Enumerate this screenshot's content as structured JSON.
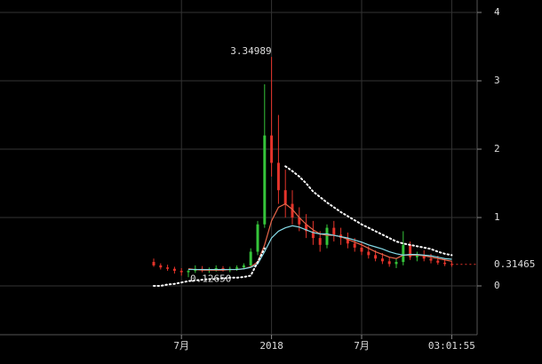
{
  "chart_data": {
    "type": "candlestick",
    "categories": [
      null,
      null,
      null,
      null,
      "7月",
      null,
      null,
      null,
      null,
      null,
      null,
      null,
      null,
      null,
      null,
      null,
      null,
      "2018",
      null,
      null,
      null,
      null,
      null,
      null,
      null,
      null,
      null,
      null,
      null,
      null,
      "7月",
      null,
      null,
      null,
      null,
      null,
      null,
      null,
      null,
      null,
      null,
      null,
      null,
      "03:01:55"
    ],
    "candles": [
      [
        0.35,
        0.4,
        0.28,
        0.3
      ],
      [
        0.3,
        0.33,
        0.24,
        0.27
      ],
      [
        0.27,
        0.31,
        0.22,
        0.25
      ],
      [
        0.25,
        0.28,
        0.18,
        0.22
      ],
      [
        0.22,
        0.26,
        0.15,
        0.2
      ],
      [
        0.2,
        0.24,
        0.1265,
        0.22
      ],
      [
        0.22,
        0.3,
        0.19,
        0.25
      ],
      [
        0.25,
        0.29,
        0.2,
        0.23
      ],
      [
        0.23,
        0.27,
        0.19,
        0.24
      ],
      [
        0.24,
        0.3,
        0.21,
        0.26
      ],
      [
        0.26,
        0.29,
        0.21,
        0.23
      ],
      [
        0.23,
        0.28,
        0.2,
        0.25
      ],
      [
        0.25,
        0.3,
        0.22,
        0.27
      ],
      [
        0.27,
        0.33,
        0.24,
        0.3
      ],
      [
        0.3,
        0.55,
        0.28,
        0.5
      ],
      [
        0.5,
        0.95,
        0.45,
        0.9
      ],
      [
        0.9,
        2.95,
        0.85,
        2.2
      ],
      [
        2.2,
        3.34989,
        1.6,
        1.8
      ],
      [
        1.8,
        2.5,
        1.2,
        1.4
      ],
      [
        1.4,
        1.7,
        1.0,
        1.2
      ],
      [
        1.2,
        1.4,
        0.9,
        1.0
      ],
      [
        1.0,
        1.15,
        0.8,
        0.9
      ],
      [
        0.9,
        1.05,
        0.7,
        0.8
      ],
      [
        0.8,
        0.95,
        0.6,
        0.7
      ],
      [
        0.7,
        0.8,
        0.5,
        0.6
      ],
      [
        0.6,
        0.9,
        0.55,
        0.85
      ],
      [
        0.85,
        0.95,
        0.65,
        0.75
      ],
      [
        0.75,
        0.85,
        0.6,
        0.7
      ],
      [
        0.7,
        0.78,
        0.55,
        0.62
      ],
      [
        0.62,
        0.7,
        0.5,
        0.56
      ],
      [
        0.56,
        0.65,
        0.45,
        0.5
      ],
      [
        0.5,
        0.58,
        0.4,
        0.45
      ],
      [
        0.45,
        0.52,
        0.36,
        0.4
      ],
      [
        0.4,
        0.48,
        0.32,
        0.36
      ],
      [
        0.36,
        0.42,
        0.28,
        0.32
      ],
      [
        0.32,
        0.4,
        0.26,
        0.35
      ],
      [
        0.35,
        0.8,
        0.3,
        0.6
      ],
      [
        0.6,
        0.65,
        0.38,
        0.42
      ],
      [
        0.42,
        0.5,
        0.36,
        0.45
      ],
      [
        0.45,
        0.52,
        0.36,
        0.4
      ],
      [
        0.4,
        0.47,
        0.33,
        0.37
      ],
      [
        0.37,
        0.44,
        0.31,
        0.34
      ],
      [
        0.34,
        0.4,
        0.29,
        0.32
      ],
      [
        0.32,
        0.36,
        0.28,
        0.31465
      ]
    ],
    "up_color": "#35c43a",
    "down_color": "#e5332a",
    "series": [
      {
        "color": "#e8664a",
        "style": "solid",
        "values": [
          null,
          null,
          null,
          null,
          null,
          0.25,
          0.24,
          0.23,
          0.23,
          0.23,
          0.23,
          0.24,
          0.24,
          0.25,
          0.28,
          0.35,
          0.6,
          0.95,
          1.15,
          1.2,
          1.12,
          1.0,
          0.9,
          0.82,
          0.76,
          0.74,
          0.74,
          0.72,
          0.68,
          0.64,
          0.6,
          0.55,
          0.5,
          0.46,
          0.42,
          0.4,
          0.45,
          0.45,
          0.45,
          0.44,
          0.42,
          0.4,
          0.38,
          0.36
        ]
      },
      {
        "color": "#86dbe8",
        "style": "solid",
        "values": [
          null,
          null,
          null,
          null,
          null,
          0.24,
          0.24,
          0.24,
          0.24,
          0.24,
          0.24,
          0.24,
          0.24,
          0.25,
          0.27,
          0.32,
          0.5,
          0.7,
          0.8,
          0.85,
          0.88,
          0.86,
          0.82,
          0.78,
          0.76,
          0.76,
          0.74,
          0.72,
          0.7,
          0.67,
          0.64,
          0.6,
          0.57,
          0.54,
          0.5,
          0.47,
          0.45,
          0.46,
          0.46,
          0.45,
          0.44,
          0.42,
          0.4,
          0.39
        ]
      },
      {
        "color": "#ffffff",
        "style": "dotted",
        "values": [
          0,
          0,
          0.02,
          0.03,
          0.05,
          0.07,
          0.08,
          0.09,
          0.1,
          0.1,
          0.11,
          0.12,
          0.12,
          0.13,
          0.15,
          0.35,
          0.55,
          null,
          null,
          1.75,
          1.68,
          1.6,
          1.5,
          1.38,
          1.3,
          1.22,
          1.15,
          1.08,
          1.02,
          0.96,
          0.9,
          0.85,
          0.8,
          0.75,
          0.7,
          0.65,
          0.62,
          0.6,
          0.58,
          0.56,
          0.54,
          0.5,
          0.47,
          0.45
        ]
      }
    ],
    "min_label": "0.12650",
    "ylim": [
      -0.714,
      4.182
    ],
    "yticks": [
      0,
      1,
      2,
      3,
      4
    ],
    "grid": true
  }
}
